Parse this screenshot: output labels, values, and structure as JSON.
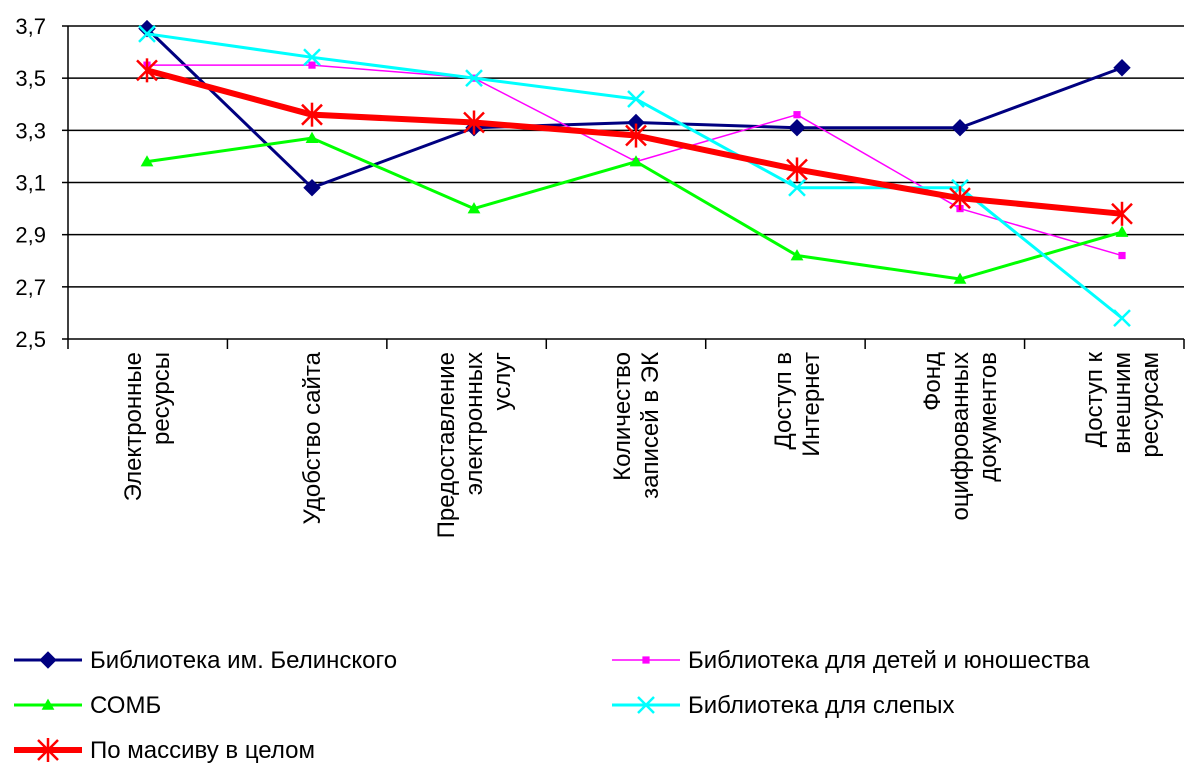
{
  "chart_data": {
    "type": "line",
    "title": "",
    "xlabel": "",
    "ylabel": "",
    "ylim": [
      2.5,
      3.7
    ],
    "yticks": [
      "2,5",
      "2,7",
      "2,9",
      "3,1",
      "3,3",
      "3,5",
      "3,7"
    ],
    "ytick_values": [
      2.5,
      2.7,
      2.9,
      3.1,
      3.3,
      3.5,
      3.7
    ],
    "grid": "horizontal",
    "legend_position": "bottom",
    "categories": [
      [
        "Электронные",
        "ресурсы"
      ],
      [
        "Удобство сайта"
      ],
      [
        "Предоставление",
        "электронных",
        "услуг"
      ],
      [
        "Количество",
        "записей в ЭК"
      ],
      [
        "Доступ в",
        "Интернет"
      ],
      [
        "Фонд",
        "оцифрованных",
        "документов"
      ],
      [
        "Доступ к",
        "внешним",
        "ресурсам"
      ]
    ],
    "series": [
      {
        "name": "Библиотека им. Белинского",
        "color": "#000080",
        "marker": "diamond",
        "values": [
          3.69,
          3.08,
          3.31,
          3.33,
          3.31,
          3.31,
          3.54
        ]
      },
      {
        "name": "Библиотека для детей и юношества",
        "color": "#FF00FF",
        "marker": "square",
        "values": [
          3.55,
          3.55,
          3.5,
          3.18,
          3.36,
          3.0,
          2.82
        ]
      },
      {
        "name": "СОМБ",
        "color": "#00FF00",
        "marker": "triangle",
        "values": [
          3.18,
          3.27,
          3.0,
          3.18,
          2.82,
          2.73,
          2.91
        ]
      },
      {
        "name": "Библиотека для слепых",
        "color": "#00FFFF",
        "marker": "x",
        "values": [
          3.67,
          3.58,
          3.5,
          3.42,
          3.08,
          3.08,
          2.58
        ]
      },
      {
        "name": "По массиву в целом",
        "color": "#FF0000",
        "marker": "star",
        "values": [
          3.53,
          3.36,
          3.33,
          3.28,
          3.15,
          3.04,
          2.98
        ]
      }
    ]
  }
}
